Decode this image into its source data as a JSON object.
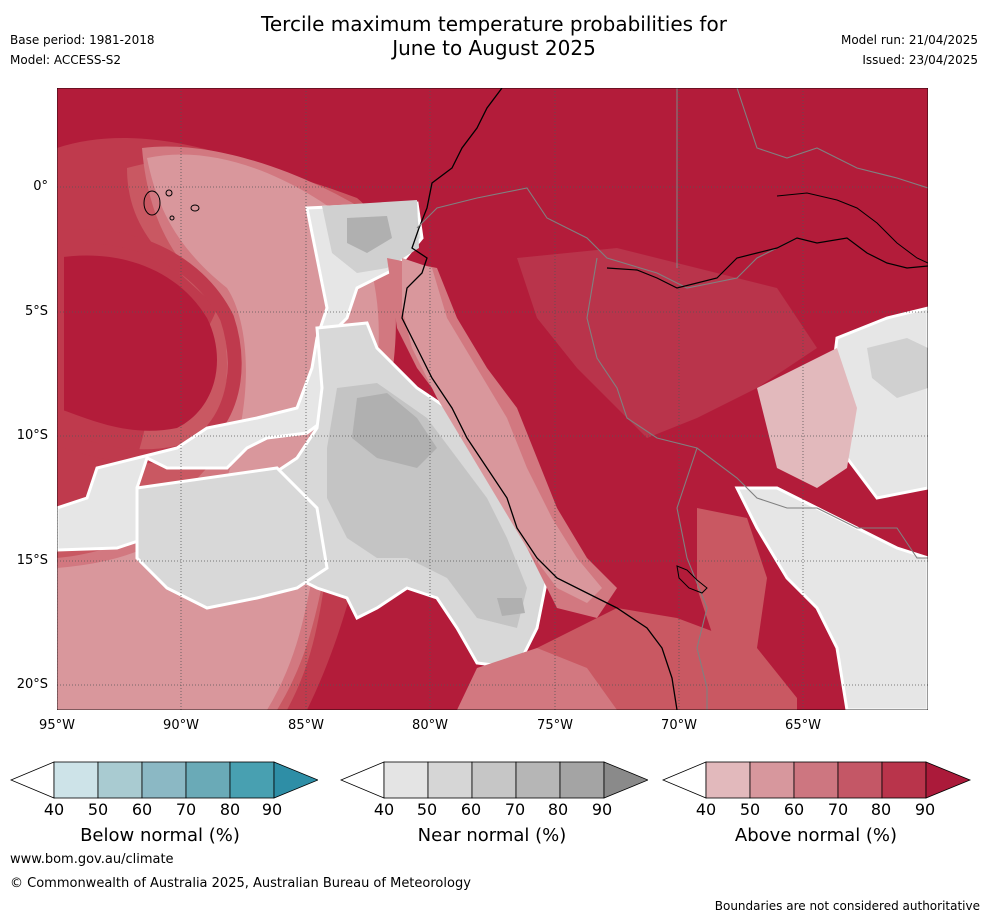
{
  "title": {
    "line1": "Tercile maximum temperature probabilities for",
    "line2": "June to August 2025"
  },
  "meta": {
    "base_period": "Base period: 1981-2018",
    "model": "Model: ACCESS-S2",
    "model_run": "Model run: 21/04/2025",
    "issued": "Issued: 23/04/2025"
  },
  "map": {
    "lat_labels": [
      "0°",
      "5°S",
      "10°S",
      "15°S",
      "20°S"
    ],
    "lon_labels": [
      "95°W",
      "90°W",
      "85°W",
      "80°W",
      "75°W",
      "70°W",
      "65°W"
    ],
    "colors": {
      "above_90": "#b31c3a",
      "above_80": "#bf3a4d",
      "above_70": "#c95862",
      "above_60": "#d27880",
      "above_50": "#d9979c",
      "above_40": "#e2b9bc",
      "near_60": "#c4c4c4",
      "near_70": "#b0b0b0",
      "near_50": "#d8d8d8",
      "near_40": "#e6e6e6"
    }
  },
  "colorbars": [
    {
      "name": "below",
      "label": "Below normal (%)",
      "ticks": [
        "40",
        "50",
        "60",
        "70",
        "80",
        "90"
      ],
      "colors": [
        "#cde3e8",
        "#a9cbd1",
        "#8bb8c4",
        "#6aaab7",
        "#48a0b1",
        "#2e8ea6"
      ]
    },
    {
      "name": "near",
      "label": "Near normal (%)",
      "ticks": [
        "40",
        "50",
        "60",
        "70",
        "80",
        "90"
      ],
      "colors": [
        "#e4e4e4",
        "#d6d6d6",
        "#c6c6c6",
        "#b6b6b6",
        "#a4a4a4",
        "#8a8a8a"
      ]
    },
    {
      "name": "above",
      "label": "Above normal (%)",
      "ticks": [
        "40",
        "50",
        "60",
        "70",
        "80",
        "90"
      ],
      "colors": [
        "#e2b9bc",
        "#d7979d",
        "#cd7680",
        "#c45766",
        "#b9344b",
        "#ab1a3a"
      ]
    }
  ],
  "footer": {
    "url": "www.bom.gov.au/climate",
    "copyright": "© Commonwealth of Australia 2025, Australian Bureau of Meteorology",
    "disclaimer": "Boundaries are not considered authoritative"
  }
}
